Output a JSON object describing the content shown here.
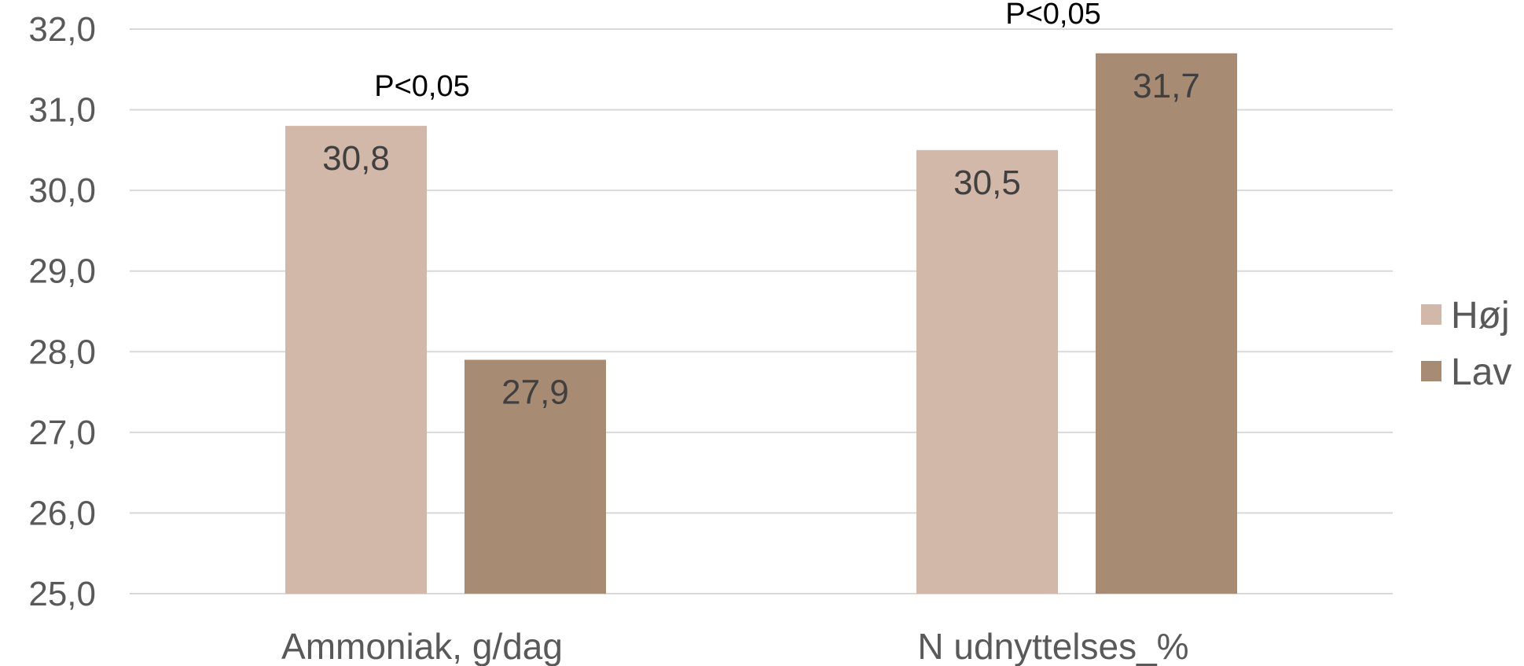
{
  "chart_data": {
    "type": "bar",
    "categories": [
      "Ammoniak, g/dag",
      "N udnyttelses_%"
    ],
    "series": [
      {
        "name": "Høj",
        "values": [
          30.8,
          30.5
        ],
        "labels": [
          "30,8",
          "30,5"
        ],
        "color": "#d2b8a8"
      },
      {
        "name": "Lav",
        "values": [
          27.9,
          31.7
        ],
        "labels": [
          "27,9",
          "31,7"
        ],
        "color": "#a88b73"
      }
    ],
    "annotations": [
      "P<0,05",
      "P<0,05"
    ],
    "yticks": [
      "25,0",
      "26,0",
      "27,0",
      "28,0",
      "29,0",
      "30,0",
      "31,0",
      "32,0"
    ],
    "ylim": [
      25,
      32
    ],
    "grid": true,
    "legend_position": "right"
  }
}
